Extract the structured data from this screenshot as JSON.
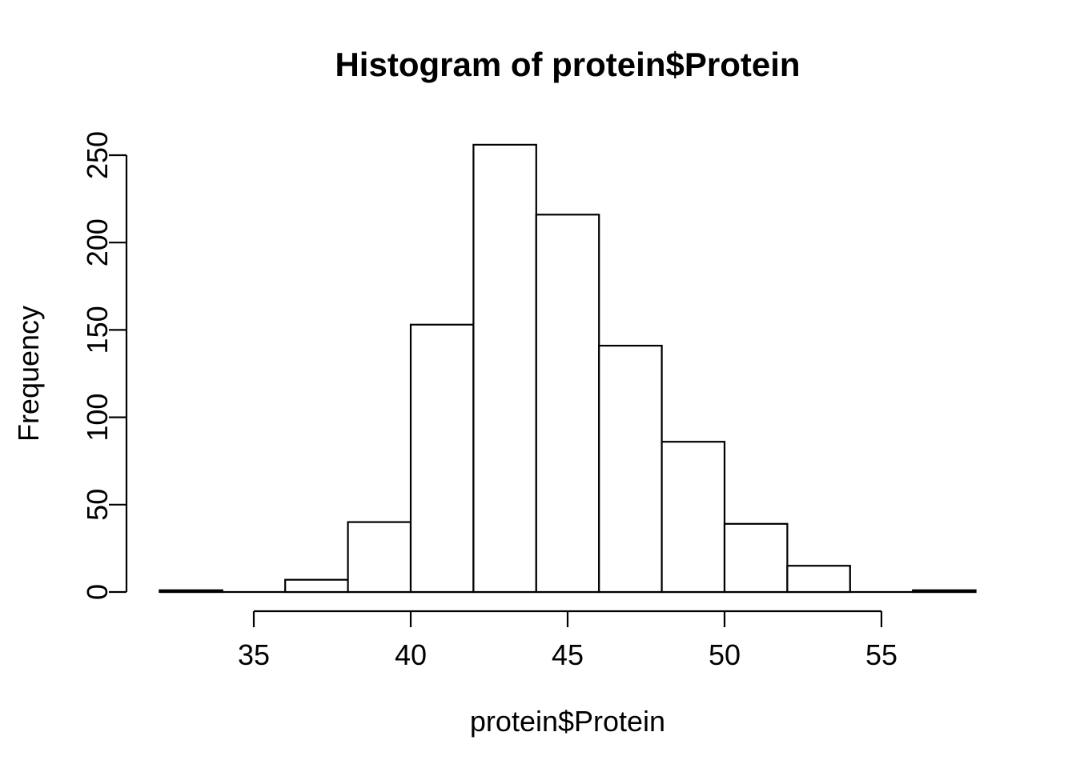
{
  "chart_data": {
    "type": "bar",
    "subtype": "histogram",
    "title": "Histogram of protein$Protein",
    "xlabel": "protein$Protein",
    "ylabel": "Frequency",
    "breaks": [
      32,
      34,
      36,
      38,
      40,
      42,
      44,
      46,
      48,
      50,
      52,
      54,
      56,
      58
    ],
    "counts": [
      1,
      0,
      7,
      40,
      153,
      256,
      216,
      141,
      86,
      39,
      15,
      0,
      1
    ],
    "x_ticks": [
      35,
      40,
      45,
      50,
      55
    ],
    "y_ticks": [
      0,
      50,
      100,
      150,
      200,
      250
    ],
    "xlim": [
      32,
      58
    ],
    "ylim": [
      0,
      256
    ],
    "grid": false,
    "legend_position": "none",
    "bar_fill_color": "#ffffff",
    "bar_stroke_color": "#000000",
    "axis_color": "#000000",
    "background_color": "#ffffff"
  }
}
